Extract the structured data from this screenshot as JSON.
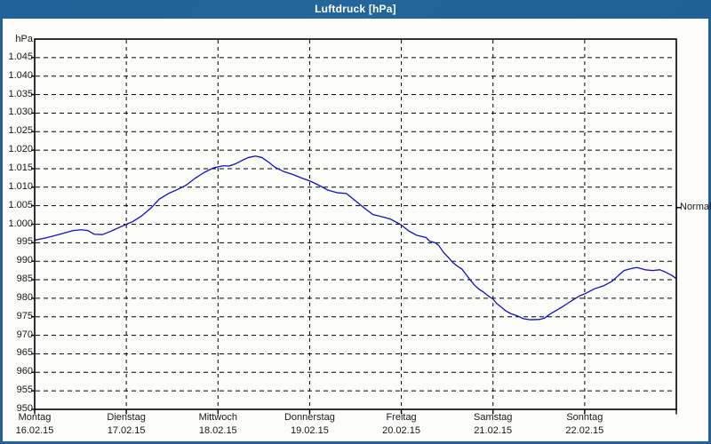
{
  "window": {
    "title": "Luftdruck [hPa]"
  },
  "colors": {
    "frame": "#20639b",
    "title_text": "#ffffff",
    "background": "#fcfdfb",
    "grid": "#000000",
    "line": "#0f0fc4",
    "label_text": "#181818"
  },
  "y_axis": {
    "unit": "hPa",
    "ticks": [
      {
        "value": 1045,
        "label": "1.045"
      },
      {
        "value": 1040,
        "label": "1.040"
      },
      {
        "value": 1035,
        "label": "1.035"
      },
      {
        "value": 1030,
        "label": "1.030"
      },
      {
        "value": 1025,
        "label": "1.025"
      },
      {
        "value": 1020,
        "label": "1.020"
      },
      {
        "value": 1015,
        "label": "1.015"
      },
      {
        "value": 1010,
        "label": "1.010"
      },
      {
        "value": 1005,
        "label": "1.005"
      },
      {
        "value": 1000,
        "label": "1.000"
      },
      {
        "value": 995,
        "label": "995"
      },
      {
        "value": 990,
        "label": "990"
      },
      {
        "value": 985,
        "label": "985"
      },
      {
        "value": 980,
        "label": "980"
      },
      {
        "value": 975,
        "label": "975"
      },
      {
        "value": 970,
        "label": "970"
      },
      {
        "value": 965,
        "label": "965"
      },
      {
        "value": 960,
        "label": "960"
      },
      {
        "value": 955,
        "label": "955"
      },
      {
        "value": 950,
        "label": "950"
      }
    ]
  },
  "x_axis": {
    "days": [
      {
        "name": "Montag",
        "date": "16.02.15"
      },
      {
        "name": "Dienstag",
        "date": "17.02.15"
      },
      {
        "name": "Mittwoch",
        "date": "18.02.15"
      },
      {
        "name": "Donnerstag",
        "date": "19.02.15"
      },
      {
        "name": "Freitag",
        "date": "20.02.15"
      },
      {
        "name": "Samstag",
        "date": "21.02.15"
      },
      {
        "name": "Sonntag",
        "date": "22.02.15"
      }
    ]
  },
  "right_axis": {
    "normal_label": "Normal",
    "normal_value": 1004.5
  },
  "chart_data": {
    "type": "line",
    "title": "Luftdruck [hPa]",
    "ylabel": "hPa",
    "ylim": [
      950,
      1050
    ],
    "y_step": 5,
    "x_range_days": [
      0,
      7
    ],
    "grid": "dashed, 5 hPa horizontal / 1 day vertical",
    "legend_position": "none",
    "normal_marker": {
      "label": "Normal",
      "value": 1004.5
    },
    "series": [
      {
        "name": "Luftdruck",
        "color": "#0f0fc4",
        "points": [
          [
            0.0,
            995.7
          ],
          [
            0.1,
            996.2
          ],
          [
            0.2,
            996.8
          ],
          [
            0.32,
            997.6
          ],
          [
            0.42,
            998.3
          ],
          [
            0.51,
            998.5
          ],
          [
            0.58,
            998.3
          ],
          [
            0.65,
            997.3
          ],
          [
            0.74,
            997.2
          ],
          [
            0.83,
            998.1
          ],
          [
            0.93,
            999.2
          ],
          [
            1.0,
            1000.0
          ],
          [
            1.07,
            1000.7
          ],
          [
            1.17,
            1002.3
          ],
          [
            1.27,
            1004.4
          ],
          [
            1.36,
            1006.8
          ],
          [
            1.46,
            1008.3
          ],
          [
            1.56,
            1009.4
          ],
          [
            1.65,
            1010.5
          ],
          [
            1.75,
            1012.4
          ],
          [
            1.85,
            1014.0
          ],
          [
            1.95,
            1015.2
          ],
          [
            2.0,
            1015.5
          ],
          [
            2.06,
            1015.8
          ],
          [
            2.12,
            1015.7
          ],
          [
            2.19,
            1016.3
          ],
          [
            2.26,
            1017.2
          ],
          [
            2.33,
            1018.0
          ],
          [
            2.41,
            1018.4
          ],
          [
            2.48,
            1018.0
          ],
          [
            2.56,
            1016.6
          ],
          [
            2.62,
            1015.4
          ],
          [
            2.72,
            1014.2
          ],
          [
            2.82,
            1013.4
          ],
          [
            2.91,
            1012.5
          ],
          [
            3.01,
            1011.6
          ],
          [
            3.11,
            1010.4
          ],
          [
            3.2,
            1009.2
          ],
          [
            3.3,
            1008.5
          ],
          [
            3.4,
            1008.3
          ],
          [
            3.49,
            1006.5
          ],
          [
            3.59,
            1004.5
          ],
          [
            3.69,
            1002.6
          ],
          [
            3.79,
            1002.0
          ],
          [
            3.88,
            1001.4
          ],
          [
            3.94,
            1000.6
          ],
          [
            4.0,
            999.8
          ],
          [
            4.08,
            998.2
          ],
          [
            4.17,
            997.0
          ],
          [
            4.27,
            996.4
          ],
          [
            4.31,
            995.4
          ],
          [
            4.37,
            995.0
          ],
          [
            4.41,
            994.2
          ],
          [
            4.46,
            992.4
          ],
          [
            4.51,
            991.1
          ],
          [
            4.56,
            989.7
          ],
          [
            4.61,
            988.7
          ],
          [
            4.66,
            987.9
          ],
          [
            4.71,
            986.3
          ],
          [
            4.75,
            985.0
          ],
          [
            4.8,
            983.5
          ],
          [
            4.85,
            982.4
          ],
          [
            4.9,
            981.6
          ],
          [
            4.95,
            980.6
          ],
          [
            5.0,
            979.8
          ],
          [
            5.04,
            978.6
          ],
          [
            5.09,
            977.6
          ],
          [
            5.14,
            976.6
          ],
          [
            5.19,
            975.9
          ],
          [
            5.27,
            975.2
          ],
          [
            5.33,
            974.5
          ],
          [
            5.41,
            974.2
          ],
          [
            5.51,
            974.3
          ],
          [
            5.56,
            974.6
          ],
          [
            5.62,
            975.7
          ],
          [
            5.75,
            977.6
          ],
          [
            5.85,
            979.2
          ],
          [
            5.94,
            980.6
          ],
          [
            6.0,
            981.2
          ],
          [
            6.11,
            982.6
          ],
          [
            6.21,
            983.4
          ],
          [
            6.3,
            984.6
          ],
          [
            6.37,
            986.2
          ],
          [
            6.43,
            987.5
          ],
          [
            6.52,
            988.1
          ],
          [
            6.57,
            988.3
          ],
          [
            6.66,
            987.7
          ],
          [
            6.74,
            987.5
          ],
          [
            6.82,
            987.7
          ],
          [
            6.86,
            987.3
          ],
          [
            6.95,
            986.2
          ],
          [
            7.0,
            985.3
          ]
        ]
      }
    ]
  }
}
